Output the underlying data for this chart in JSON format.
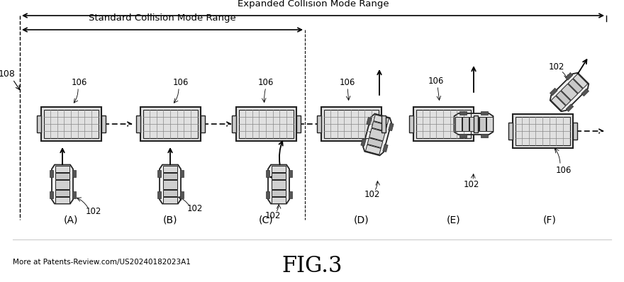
{
  "bg_color": "#ffffff",
  "title": "FIG.3",
  "subtitle_patent": "More at Patents-Review.com/US20240182023A1",
  "expanded_label": "Expanded Collision Mode Range",
  "standard_label": "Standard Collision Mode Range",
  "scenario_labels": [
    "(A)",
    "(B)",
    "(C)",
    "(D)",
    "(E)",
    "(F)"
  ],
  "ref_108": "108",
  "ref_102": "102",
  "ref_106": "106",
  "text_color": "#000000",
  "truck_face": "#e0e0e0",
  "truck_edge": "#222222",
  "car_face": "#f0f0f0",
  "car_edge": "#222222"
}
